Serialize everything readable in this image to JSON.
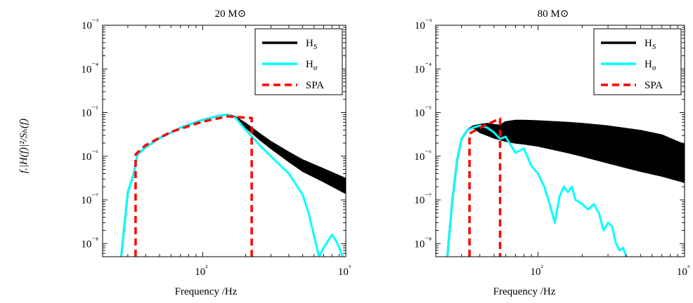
{
  "chart_data": [
    {
      "type": "line",
      "title": "20 M⊙",
      "xlabel": "Frequency /Hz",
      "ylabel": "f.|H(f)|²/Sₕ(f)",
      "xscale": "log",
      "yscale": "log",
      "xlim": [
        20,
        1000
      ],
      "ylim": [
        5e-09,
        0.001
      ],
      "xtick_labels": [
        "10²",
        "10³"
      ],
      "ytick_labels": [
        "10⁻⁸",
        "10⁻⁷",
        "10⁻⁶",
        "10⁻⁵",
        "10⁻⁴",
        "10⁻³"
      ],
      "legend_position": "top-right",
      "series": [
        {
          "name": "H_S",
          "color": "#000000",
          "style": "solid",
          "x": [
            27,
            30,
            33,
            35,
            40,
            50,
            70,
            100,
            130,
            150,
            170,
            200,
            250,
            300,
            400,
            500,
            700,
            1000
          ],
          "y": [
            5e-09,
            1.5e-07,
            4e-07,
            1.1e-06,
            1.6e-06,
            2.6e-06,
            4.5e-06,
            6.8e-06,
            8.5e-06,
            9e-06,
            7.8e-06,
            5.5e-06,
            3.2e-06,
            2.1e-06,
            1.2e-06,
            8e-07,
            5e-07,
            3e-07
          ],
          "band_lower": [
            5e-09,
            1.5e-07,
            4e-07,
            1.1e-06,
            1.6e-06,
            2.6e-06,
            4.5e-06,
            6.8e-06,
            8.5e-06,
            9e-06,
            7.8e-06,
            4.5e-06,
            2.4e-06,
            1.5e-06,
            7.5e-07,
            4.5e-07,
            2.6e-07,
            1.4e-07
          ]
        },
        {
          "name": "H_σ",
          "color": "#00ffff",
          "style": "solid",
          "x": [
            27,
            30,
            33,
            35,
            40,
            50,
            70,
            100,
            130,
            150,
            170,
            200,
            250,
            300,
            400,
            500,
            550,
            600,
            650,
            700,
            800,
            850,
            900,
            950
          ],
          "y": [
            5e-09,
            1.5e-07,
            4e-07,
            1.1e-06,
            1.6e-06,
            2.6e-06,
            4.5e-06,
            6.8e-06,
            8.5e-06,
            9e-06,
            7.5e-06,
            4e-06,
            1.8e-06,
            1e-06,
            4e-07,
            1.3e-07,
            5e-08,
            1.5e-08,
            5e-09,
            8e-09,
            1.6e-08,
            1.2e-08,
            8e-09,
            5e-09
          ]
        },
        {
          "name": "SPA",
          "color": "#ff0000",
          "style": "dashed",
          "x": [
            34,
            34,
            40,
            60,
            100,
            150,
            220,
            220
          ],
          "y": [
            5e-09,
            1.1e-06,
            1.8e-06,
            3.6e-06,
            6.2e-06,
            8.2e-06,
            7.5e-06,
            5e-09
          ]
        }
      ]
    },
    {
      "type": "line",
      "title": "80 M⊙",
      "xlabel": "Frequency /Hz",
      "xscale": "log",
      "yscale": "log",
      "xlim": [
        20,
        1000
      ],
      "ylim": [
        5e-09,
        0.001
      ],
      "xtick_labels": [
        "10²",
        "10³"
      ],
      "ytick_labels": [
        "10⁻⁸",
        "10⁻⁷",
        "10⁻⁶",
        "10⁻⁵",
        "10⁻⁴",
        "10⁻³"
      ],
      "legend_position": "top-right",
      "series": [
        {
          "name": "H_S",
          "color": "#000000",
          "style": "solid",
          "x": [
            24,
            26,
            28,
            30,
            33,
            36,
            40,
            45,
            50,
            55,
            60,
            70,
            80,
            100,
            130,
            160,
            200,
            300,
            500,
            700,
            1000
          ],
          "y": [
            5e-09,
            1e-07,
            8e-07,
            2.5e-06,
            4e-06,
            4.8e-06,
            5.2e-06,
            5.5e-06,
            5.2e-06,
            5e-06,
            6e-06,
            6.5e-06,
            6.5e-06,
            6.3e-06,
            6e-06,
            5.8e-06,
            5.5e-06,
            4.8e-06,
            3.8e-06,
            3e-06,
            1.8e-06
          ],
          "band_lower": [
            5e-09,
            1e-07,
            8e-07,
            2.5e-06,
            4e-06,
            4.5e-06,
            3.5e-06,
            3e-06,
            2.6e-06,
            2.4e-06,
            2.2e-06,
            2e-06,
            1.9e-06,
            1.7e-06,
            1.4e-06,
            1.2e-06,
            1e-06,
            7e-07,
            4.5e-07,
            3.5e-07,
            2.5e-07
          ]
        },
        {
          "name": "H_σ",
          "color": "#00ffff",
          "style": "solid",
          "x": [
            24,
            26,
            28,
            30,
            33,
            36,
            40,
            45,
            50,
            55,
            60,
            65,
            70,
            80,
            90,
            100,
            110,
            120,
            130,
            140,
            150,
            160,
            170,
            180,
            200,
            220,
            240,
            260,
            280,
            300,
            320,
            340,
            360,
            380,
            400
          ],
          "y": [
            5e-09,
            1e-07,
            8e-07,
            2.5e-06,
            4e-06,
            4.5e-06,
            5e-06,
            4.5e-06,
            3.5e-06,
            2.5e-06,
            2.8e-06,
            1.8e-06,
            1.2e-06,
            1.5e-06,
            6e-07,
            4e-07,
            2e-07,
            8e-08,
            3e-08,
            1.2e-07,
            2e-07,
            1.5e-07,
            2e-07,
            1e-07,
            8e-08,
            6e-08,
            8e-08,
            5e-08,
            2e-08,
            3e-08,
            2.5e-08,
            1e-08,
            7e-09,
            8e-09,
            5e-09
          ]
        },
        {
          "name": "SPA",
          "color": "#ff0000",
          "style": "dashed",
          "x": [
            34,
            34,
            40,
            55,
            55
          ],
          "y": [
            5e-09,
            3.3e-06,
            4.5e-06,
            7.3e-06,
            5e-09
          ]
        }
      ]
    }
  ]
}
